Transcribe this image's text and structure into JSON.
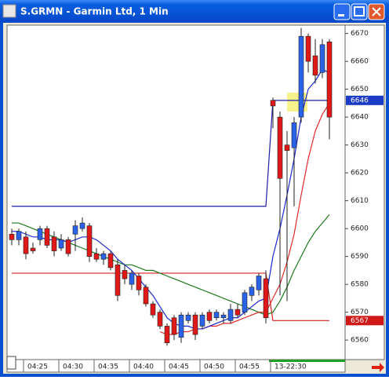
{
  "window": {
    "title": "S.GRMN - Garmin Ltd, 1 Min"
  },
  "chart_data": {
    "type": "candlestick",
    "categories": [
      null,
      null,
      "04:25",
      null,
      null,
      null,
      null,
      "04:30",
      null,
      null,
      null,
      null,
      "04:35",
      null,
      null,
      null,
      null,
      "04:40",
      null,
      null,
      null,
      null,
      "04:45",
      null,
      null,
      null,
      null,
      "04:50",
      null,
      null,
      null,
      null,
      "04:55",
      null,
      null,
      null,
      null,
      "13-22:30",
      null,
      null,
      null,
      null,
      null,
      null,
      null,
      null
    ],
    "open": [
      6598,
      6596,
      6597,
      6593,
      6596,
      6600,
      6597,
      6593,
      6596,
      6598,
      6600,
      6601,
      6591,
      6589,
      6591,
      6587,
      6585,
      6580,
      6583,
      6579,
      6573,
      6570,
      6565,
      6568,
      6561,
      6567,
      6569,
      6565,
      6570,
      6568,
      6568,
      6567,
      6571,
      6570,
      6576,
      6578,
      6582,
      6646,
      6640,
      6630,
      6629,
      6640,
      6669,
      6662,
      6656,
      6667
    ],
    "high": [
      6600,
      6600,
      6599,
      6595,
      6601,
      6601,
      6599,
      6598,
      6597,
      6603,
      6604,
      6602,
      6593,
      6592,
      6592,
      6589,
      6587,
      6585,
      6584,
      6580,
      6574,
      6571,
      6566,
      6569,
      6570,
      6570,
      6570,
      6570,
      6571,
      6571,
      6570,
      6573,
      6573,
      6578,
      6580,
      6584,
      6585,
      6647,
      6642,
      6635,
      6640,
      6672,
      6670,
      6668,
      6668,
      6668
    ],
    "low": [
      6594,
      6594,
      6589,
      6591,
      6594,
      6593,
      6590,
      6592,
      6590,
      6592,
      6599,
      6588,
      6588,
      6587,
      6585,
      6574,
      6580,
      6578,
      6576,
      6572,
      6568,
      6564,
      6558,
      6560,
      6559,
      6566,
      6560,
      6564,
      6566,
      6567,
      6566,
      6566,
      6568,
      6569,
      6574,
      6576,
      6566,
      6636,
      6576,
      6574,
      6608,
      6638,
      6656,
      6652,
      6654,
      6632
    ],
    "close": [
      6596,
      6599,
      6591,
      6592,
      6600,
      6594,
      6592,
      6596,
      6591,
      6601,
      6602,
      6590,
      6589,
      6591,
      6586,
      6576,
      6582,
      6584,
      6578,
      6573,
      6569,
      6565,
      6559,
      6562,
      6569,
      6569,
      6562,
      6569,
      6567,
      6570,
      6569,
      6571,
      6569,
      6577,
      6579,
      6583,
      6568,
      6644,
      6618,
      6628,
      6638,
      6669,
      6660,
      6655,
      6666,
      6640
    ],
    "up_color": "#2a62e8",
    "down_color": "#e01818",
    "lines": [
      {
        "color": "#1c1ca8",
        "values": [
          6608,
          6608,
          6608,
          6608,
          6608,
          6608,
          6608,
          6608,
          6608,
          6608,
          6608,
          6608,
          6608,
          6608,
          6608,
          6608,
          6608,
          6608,
          6608,
          6608,
          6608,
          6608,
          6608,
          6608,
          6608,
          6608,
          6608,
          6608,
          6608,
          6608,
          6608,
          6608,
          6608,
          6608,
          6608,
          6608,
          6608,
          6646,
          6646,
          6646,
          6646,
          6646,
          6646,
          6646,
          6646,
          6646
        ]
      },
      {
        "color": "#d82020",
        "values": [
          6584,
          6584,
          6584,
          6584,
          6584,
          6584,
          6584,
          6584,
          6584,
          6584,
          6584,
          6584,
          6584,
          6584,
          6584,
          6584,
          6584,
          6584,
          6584,
          6584,
          6584,
          6584,
          6584,
          6584,
          6584,
          6584,
          6584,
          6584,
          6584,
          6584,
          6584,
          6584,
          6584,
          6584,
          6584,
          6584,
          6584,
          6567,
          6567,
          6567,
          6567,
          6567,
          6567,
          6567,
          6567,
          6567
        ]
      },
      {
        "color": "#1a7a1a",
        "values": [
          6602,
          6602,
          6601,
          6600,
          6599,
          6598,
          6597,
          6596,
          6595,
          6594,
          6593,
          6592,
          6591,
          6590,
          6589,
          6588,
          6587,
          6587,
          6586,
          6585,
          6585,
          6584,
          6583,
          6582,
          6581,
          6580,
          6579,
          6578,
          6577,
          6576,
          6575,
          6574,
          6573,
          6572,
          6571,
          6570,
          6569,
          6570,
          6574,
          6579,
          6585,
          6590,
          6595,
          6599,
          6602,
          6605
        ]
      },
      {
        "color": "#e02828",
        "values": [
          null,
          null,
          null,
          null,
          null,
          null,
          null,
          null,
          null,
          null,
          null,
          null,
          null,
          null,
          null,
          null,
          null,
          null,
          null,
          null,
          null,
          6563,
          6562,
          6562,
          6563,
          6563,
          6564,
          6564,
          6565,
          6565,
          6566,
          6566,
          6567,
          6568,
          6569,
          6570,
          6570,
          6575,
          6580,
          6588,
          6598,
          6612,
          6625,
          6635,
          6641,
          6645
        ]
      },
      {
        "color": "#1c28d0",
        "values": [
          6599,
          6599,
          6598,
          6597,
          6597,
          6596,
          6596,
          6596,
          6595,
          6596,
          6597,
          6597,
          6596,
          6594,
          6592,
          6589,
          6587,
          6585,
          6582,
          6579,
          6576,
          6572,
          6568,
          6566,
          6565,
          6565,
          6564,
          6564,
          6565,
          6566,
          6567,
          6568,
          6568,
          6570,
          6572,
          6574,
          6575,
          6590,
          6600,
          6612,
          6625,
          6640,
          6650,
          6653,
          6657,
          6656
        ]
      }
    ],
    "ylim": [
      6553,
      6673
    ],
    "yticks": [
      6560,
      6570,
      6580,
      6590,
      6600,
      6610,
      6620,
      6630,
      6640,
      6650,
      6660,
      6670
    ],
    "price_markers": [
      {
        "value": 6646,
        "color": "#1c3cc8"
      },
      {
        "value": 6567,
        "color": "#d01818"
      }
    ]
  }
}
